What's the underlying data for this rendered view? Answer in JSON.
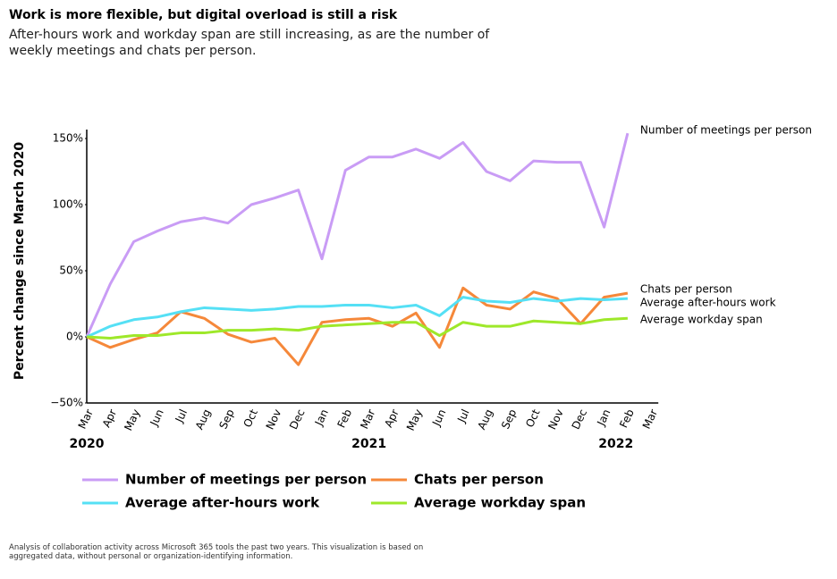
{
  "chart_data": {
    "type": "line",
    "title": "Work is more flexible, but digital overload is still a risk",
    "subtitle": "After-hours work and workday span are still increasing, as are the number of weekly meetings and chats per person.",
    "ylabel": "Percent change since March 2020",
    "footnote": "Analysis of collaboration activity across Microsoft 365 tools the past two years. This visualization is based on aggregated data, without personal or organization-identifying information.",
    "categories": [
      "Mar",
      "Apr",
      "May",
      "Jun",
      "Jul",
      "Aug",
      "Sep",
      "Oct",
      "Nov",
      "Dec",
      "Jan",
      "Feb",
      "Mar",
      "Apr",
      "May",
      "Jun",
      "Jul",
      "Aug",
      "Sep",
      "Oct",
      "Nov",
      "Dec",
      "Jan",
      "Feb",
      "Mar"
    ],
    "year_labels": [
      {
        "label": "2020",
        "index": 0
      },
      {
        "label": "2021",
        "index": 12
      },
      {
        "label": "2022",
        "index": 22.5
      }
    ],
    "ylim": [
      -50,
      150
    ],
    "yticks": [
      {
        "value": -50,
        "label": "−50%"
      },
      {
        "value": 0,
        "label": "0%"
      },
      {
        "value": 50,
        "label": "50%"
      },
      {
        "value": 100,
        "label": "100%"
      },
      {
        "value": 150,
        "label": "150%"
      }
    ],
    "series": [
      {
        "name": "Number of meetings per person",
        "color": "#c99cf5",
        "values": [
          0,
          40,
          72,
          80,
          87,
          90,
          86,
          100,
          105,
          111,
          59,
          126,
          136,
          136,
          142,
          135,
          147,
          125,
          118,
          133,
          132,
          132,
          83,
          154,
          null
        ]
      },
      {
        "name": "Chats per person",
        "color": "#f5883a",
        "values": [
          0,
          -8,
          -2,
          3,
          19,
          14,
          2,
          -4,
          -1,
          -21,
          11,
          13,
          14,
          8,
          18,
          -8,
          37,
          24,
          21,
          34,
          29,
          10,
          30,
          33,
          null
        ]
      },
      {
        "name": "Average after-hours work",
        "color": "#55e0f5",
        "values": [
          0,
          8,
          13,
          15,
          19,
          22,
          21,
          20,
          21,
          23,
          23,
          24,
          24,
          22,
          24,
          16,
          30,
          27,
          26,
          29,
          27,
          29,
          28,
          29,
          null
        ]
      },
      {
        "name": "Average workday span",
        "color": "#9ee82a",
        "values": [
          0,
          -1,
          1,
          1,
          3,
          3,
          5,
          5,
          6,
          5,
          8,
          9,
          10,
          11,
          11,
          1,
          11,
          8,
          8,
          12,
          11,
          10,
          13,
          14,
          null
        ]
      }
    ]
  }
}
